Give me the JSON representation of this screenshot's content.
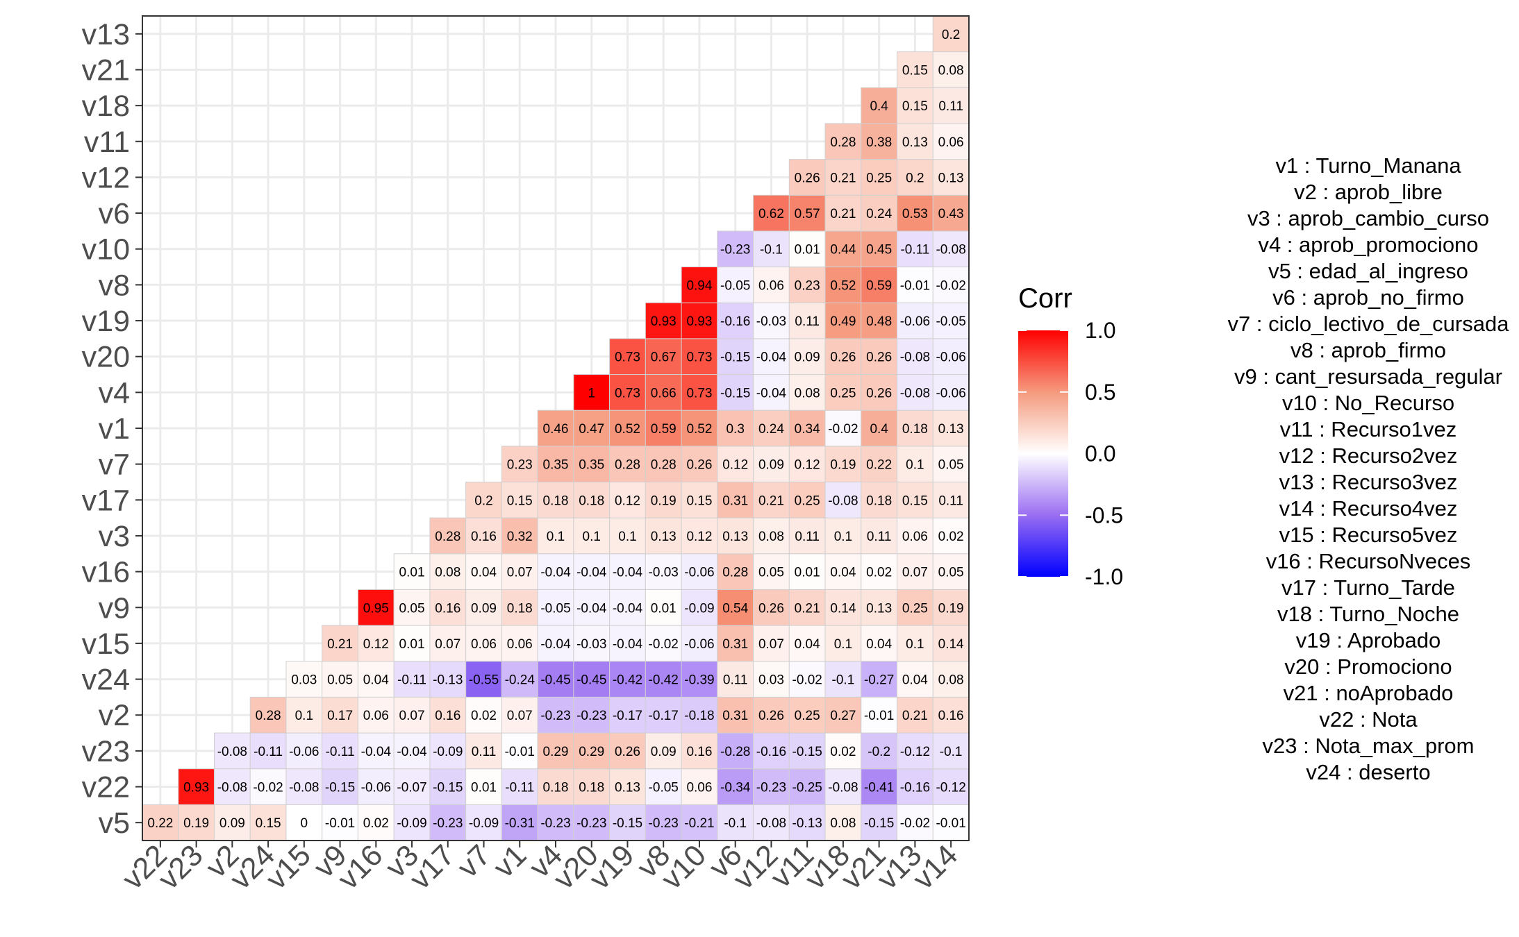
{
  "chart_data": {
    "type": "heatmap",
    "title": "",
    "xlabel": "",
    "ylabel": "",
    "x_order": [
      "v22",
      "v23",
      "v2",
      "v24",
      "v15",
      "v9",
      "v16",
      "v3",
      "v17",
      "v7",
      "v1",
      "v4",
      "v20",
      "v19",
      "v8",
      "v10",
      "v6",
      "v12",
      "v11",
      "v18",
      "v21",
      "v13",
      "v14"
    ],
    "y_order": [
      "v5",
      "v22",
      "v23",
      "v2",
      "v24",
      "v15",
      "v9",
      "v16",
      "v3",
      "v17",
      "v7",
      "v1",
      "v4",
      "v20",
      "v19",
      "v8",
      "v10",
      "v6",
      "v12",
      "v11",
      "v18",
      "v21",
      "v13"
    ],
    "value_range": [
      -1,
      1
    ],
    "color_low": "#0000ff",
    "color_mid": "#ffffff",
    "color_high": "#ff0000",
    "grid": true,
    "legend": {
      "title": "Corr",
      "position": "right",
      "ticks": [
        "1.0",
        "0.5",
        "0.0",
        "-0.5",
        "-1.0"
      ]
    },
    "rows": [
      {
        "y": "v5",
        "values": [
          "0.22",
          "0.19",
          "0.09",
          "0.15",
          "0",
          "-0.01",
          "0.02",
          "-0.09",
          "-0.23",
          "-0.09",
          "-0.31",
          "-0.23",
          "-0.23",
          "-0.15",
          "-0.23",
          "-0.21",
          "-0.1",
          "-0.08",
          "-0.13",
          "0.08",
          "-0.15",
          "-0.02",
          "-0.01"
        ]
      },
      {
        "y": "v22",
        "values": [
          "0.93",
          "-0.08",
          "-0.02",
          "-0.08",
          "-0.15",
          "-0.06",
          "-0.07",
          "-0.15",
          "0.01",
          "-0.11",
          "0.18",
          "0.18",
          "0.13",
          "-0.05",
          "0.06",
          "-0.34",
          "-0.23",
          "-0.25",
          "-0.08",
          "-0.41",
          "-0.16",
          "-0.12"
        ]
      },
      {
        "y": "v23",
        "values": [
          "-0.08",
          "-0.11",
          "-0.06",
          "-0.11",
          "-0.04",
          "-0.04",
          "-0.09",
          "0.11",
          "-0.01",
          "0.29",
          "0.29",
          "0.26",
          "0.09",
          "0.16",
          "-0.28",
          "-0.16",
          "-0.15",
          "0.02",
          "-0.2",
          "-0.12",
          "-0.1"
        ]
      },
      {
        "y": "v2",
        "values": [
          "0.28",
          "0.1",
          "0.17",
          "0.06",
          "0.07",
          "0.16",
          "0.02",
          "0.07",
          "-0.23",
          "-0.23",
          "-0.17",
          "-0.17",
          "-0.18",
          "0.31",
          "0.26",
          "0.25",
          "0.27",
          "-0.01",
          "0.21",
          "0.16"
        ]
      },
      {
        "y": "v24",
        "values": [
          "0.03",
          "0.05",
          "0.04",
          "-0.11",
          "-0.13",
          "-0.55",
          "-0.24",
          "-0.45",
          "-0.45",
          "-0.42",
          "-0.42",
          "-0.39",
          "0.11",
          "0.03",
          "-0.02",
          "-0.1",
          "-0.27",
          "0.04",
          "0.08"
        ]
      },
      {
        "y": "v15",
        "values": [
          "0.21",
          "0.12",
          "0.01",
          "0.07",
          "0.06",
          "0.06",
          "-0.04",
          "-0.03",
          "-0.04",
          "-0.02",
          "-0.06",
          "0.31",
          "0.07",
          "0.04",
          "0.1",
          "0.04",
          "0.1",
          "0.14"
        ]
      },
      {
        "y": "v9",
        "values": [
          "0.95",
          "0.05",
          "0.16",
          "0.09",
          "0.18",
          "-0.05",
          "-0.04",
          "-0.04",
          "0.01",
          "-0.09",
          "0.54",
          "0.26",
          "0.21",
          "0.14",
          "0.13",
          "0.25",
          "0.19"
        ]
      },
      {
        "y": "v16",
        "values": [
          "0.01",
          "0.08",
          "0.04",
          "0.07",
          "-0.04",
          "-0.04",
          "-0.04",
          "-0.03",
          "-0.06",
          "0.28",
          "0.05",
          "0.01",
          "0.04",
          "0.02",
          "0.07",
          "0.05"
        ]
      },
      {
        "y": "v3",
        "values": [
          "0.28",
          "0.16",
          "0.32",
          "0.1",
          "0.1",
          "0.1",
          "0.13",
          "0.12",
          "0.13",
          "0.08",
          "0.11",
          "0.1",
          "0.11",
          "0.06",
          "0.02"
        ]
      },
      {
        "y": "v17",
        "values": [
          "0.2",
          "0.15",
          "0.18",
          "0.18",
          "0.12",
          "0.19",
          "0.15",
          "0.31",
          "0.21",
          "0.25",
          "-0.08",
          "0.18",
          "0.15",
          "0.11"
        ]
      },
      {
        "y": "v7",
        "values": [
          "0.23",
          "0.35",
          "0.35",
          "0.28",
          "0.28",
          "0.26",
          "0.12",
          "0.09",
          "0.12",
          "0.19",
          "0.22",
          "0.1",
          "0.05"
        ]
      },
      {
        "y": "v1",
        "values": [
          "0.46",
          "0.47",
          "0.52",
          "0.59",
          "0.52",
          "0.3",
          "0.24",
          "0.34",
          "-0.02",
          "0.4",
          "0.18",
          "0.13"
        ]
      },
      {
        "y": "v4",
        "values": [
          "1",
          "0.73",
          "0.66",
          "0.73",
          "-0.15",
          "-0.04",
          "0.08",
          "0.25",
          "0.26",
          "-0.08",
          "-0.06"
        ]
      },
      {
        "y": "v20",
        "values": [
          "0.73",
          "0.67",
          "0.73",
          "-0.15",
          "-0.04",
          "0.09",
          "0.26",
          "0.26",
          "-0.08",
          "-0.06"
        ]
      },
      {
        "y": "v19",
        "values": [
          "0.93",
          "0.93",
          "-0.16",
          "-0.03",
          "0.11",
          "0.49",
          "0.48",
          "-0.06",
          "-0.05"
        ]
      },
      {
        "y": "v8",
        "values": [
          "0.94",
          "-0.05",
          "0.06",
          "0.23",
          "0.52",
          "0.59",
          "-0.01",
          "-0.02"
        ]
      },
      {
        "y": "v10",
        "values": [
          "-0.23",
          "-0.1",
          "0.01",
          "0.44",
          "0.45",
          "-0.11",
          "-0.08"
        ]
      },
      {
        "y": "v6",
        "values": [
          "0.62",
          "0.57",
          "0.21",
          "0.24",
          "0.53",
          "0.43"
        ]
      },
      {
        "y": "v12",
        "values": [
          "0.26",
          "0.21",
          "0.25",
          "0.2",
          "0.13"
        ]
      },
      {
        "y": "v11",
        "values": [
          "0.28",
          "0.38",
          "0.13",
          "0.06"
        ]
      },
      {
        "y": "v18",
        "values": [
          "0.4",
          "0.15",
          "0.11"
        ]
      },
      {
        "y": "v21",
        "values": [
          "0.15",
          "0.08"
        ]
      },
      {
        "y": "v13",
        "values": [
          "0.2"
        ]
      }
    ],
    "annotation": [
      "v1 :  Turno_Manana",
      "v2 :  aprob_libre",
      "v3 :  aprob_cambio_curso",
      "v4 :  aprob_promociono",
      "v5 :  edad_al_ingreso",
      "v6 :  aprob_no_firmo",
      "v7 :  ciclo_lectivo_de_cursada",
      "v8 :  aprob_firmo",
      "v9 :  cant_resursada_regular",
      "v10 :  No_Recurso",
      "v11 :  Recurso1vez",
      "v12 :  Recurso2vez",
      "v13 :  Recurso3vez",
      "v14 :  Recurso4vez",
      "v15 :  Recurso5vez",
      "v16 :  RecursoNveces",
      "v17 :  Turno_Tarde",
      "v18 :  Turno_Noche",
      "v19 :  Aprobado",
      "v20 :  Promociono",
      "v21 :  noAprobado",
      "v22 :  Nota",
      "v23 :  Nota_max_prom",
      "v24 :  deserto"
    ]
  }
}
